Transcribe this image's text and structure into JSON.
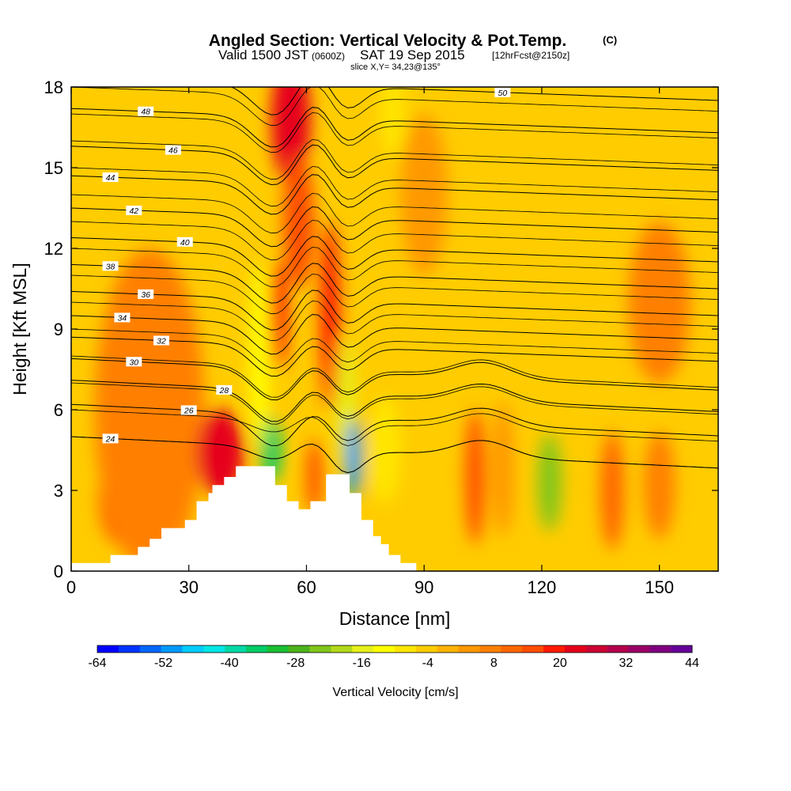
{
  "title": {
    "main": "Angled Section: Vertical Velocity & Pot.Temp.",
    "main_tag": "(C)",
    "valid_prefix": "Valid 1500 JST",
    "valid_utc": "(0600Z)",
    "valid_date": "SAT 19 Sep 2015",
    "valid_fcst": "[12hrFcst@2150z]",
    "slice": "slice X,Y= 34,23@135°"
  },
  "chart_data": {
    "type": "heatmap",
    "xlabel": "Distance [nm]",
    "ylabel": "Height [Kft MSL]",
    "xlim": [
      0,
      165
    ],
    "ylim": [
      0,
      18
    ],
    "x_ticks": [
      "0",
      "30",
      "60",
      "90",
      "120",
      "150"
    ],
    "y_ticks": [
      "0",
      "3",
      "6",
      "9",
      "12",
      "15",
      "18"
    ],
    "colorbar": {
      "label": "Vertical Velocity [cm/s]",
      "ticks": [
        "-64",
        "-52",
        "-40",
        "-28",
        "-16",
        "-4",
        "8",
        "20",
        "32",
        "44"
      ],
      "colors": [
        "#0000ff",
        "#0033ff",
        "#0066ff",
        "#0099ff",
        "#00ccff",
        "#00e6e6",
        "#00d9a6",
        "#00cc66",
        "#19bf33",
        "#4cb21a",
        "#80c61a",
        "#b3d91a",
        "#e6f01a",
        "#ffff00",
        "#ffe600",
        "#ffcc00",
        "#ffb300",
        "#ff9900",
        "#ff8000",
        "#ff6600",
        "#ff4d00",
        "#ff1a00",
        "#e6001a",
        "#cc0033",
        "#b3004d",
        "#990066",
        "#800080",
        "#660099"
      ]
    },
    "terrain": [
      [
        0,
        0.3
      ],
      [
        10,
        0.3
      ],
      [
        10,
        0.6
      ],
      [
        17,
        0.6
      ],
      [
        17,
        0.9
      ],
      [
        20,
        0.9
      ],
      [
        20,
        1.2
      ],
      [
        23,
        1.2
      ],
      [
        23,
        1.6
      ],
      [
        29,
        1.6
      ],
      [
        29,
        1.9
      ],
      [
        32,
        1.9
      ],
      [
        32,
        2.6
      ],
      [
        35,
        2.6
      ],
      [
        35,
        2.9
      ],
      [
        36,
        2.9
      ],
      [
        36,
        3.2
      ],
      [
        39,
        3.2
      ],
      [
        39,
        3.5
      ],
      [
        42,
        3.5
      ],
      [
        42,
        3.9
      ],
      [
        52,
        3.9
      ],
      [
        52,
        3.2
      ],
      [
        55,
        3.2
      ],
      [
        55,
        2.6
      ],
      [
        58,
        2.6
      ],
      [
        58,
        2.3
      ],
      [
        61,
        2.3
      ],
      [
        61,
        2.6
      ],
      [
        65,
        2.6
      ],
      [
        65,
        3.6
      ],
      [
        71,
        3.6
      ],
      [
        71,
        2.9
      ],
      [
        74,
        2.9
      ],
      [
        74,
        1.9
      ],
      [
        77,
        1.9
      ],
      [
        77,
        1.3
      ],
      [
        79,
        1.3
      ],
      [
        79,
        1.0
      ],
      [
        81,
        1.0
      ],
      [
        81,
        0.6
      ],
      [
        84,
        0.6
      ],
      [
        84,
        0.3
      ],
      [
        88,
        0.3
      ],
      [
        88,
        0.0
      ]
    ],
    "velocity_blobs": [
      {
        "x": 12,
        "y": 2.6,
        "v": 10,
        "rx": 5,
        "ry": 1.6
      },
      {
        "x": 20,
        "y": 6.0,
        "v": 8,
        "rx": 14,
        "ry": 6
      },
      {
        "x": 38,
        "y": 4.4,
        "v": 22,
        "rx": 6,
        "ry": 1.6
      },
      {
        "x": 56,
        "y": 16.8,
        "v": 22,
        "rx": 5,
        "ry": 2.4
      },
      {
        "x": 58,
        "y": 13.0,
        "v": 14,
        "rx": 4,
        "ry": 2.5
      },
      {
        "x": 53,
        "y": 9.5,
        "v": 18,
        "rx": 2.2,
        "ry": 2.0
      },
      {
        "x": 48,
        "y": 8.0,
        "v": -12,
        "rx": 2.5,
        "ry": 3.5
      },
      {
        "x": 51,
        "y": 4.5,
        "v": -34,
        "rx": 2.5,
        "ry": 1.2
      },
      {
        "x": 66,
        "y": 9.5,
        "v": 18,
        "rx": 2.5,
        "ry": 3.5
      },
      {
        "x": 62,
        "y": 3.5,
        "v": 14,
        "rx": 2,
        "ry": 1.4
      },
      {
        "x": 70,
        "y": 6.2,
        "v": -14,
        "rx": 2.5,
        "ry": 2.5
      },
      {
        "x": 72,
        "y": 4.2,
        "v": -52,
        "rx": 2,
        "ry": 1.5
      },
      {
        "x": 80,
        "y": 4.5,
        "v": -10,
        "rx": 4,
        "ry": 2
      },
      {
        "x": 82,
        "y": 17.0,
        "v": -10,
        "rx": 3,
        "ry": 1.6
      },
      {
        "x": 90,
        "y": 14.0,
        "v": 2,
        "rx": 6,
        "ry": 3
      },
      {
        "x": 103,
        "y": 3.5,
        "v": 16,
        "rx": 2.5,
        "ry": 2.5
      },
      {
        "x": 110,
        "y": 3.8,
        "v": 4,
        "rx": 3,
        "ry": 2.5
      },
      {
        "x": 122,
        "y": 3.3,
        "v": -24,
        "rx": 3,
        "ry": 1.8
      },
      {
        "x": 138,
        "y": 3.0,
        "v": 12,
        "rx": 3,
        "ry": 2.2
      },
      {
        "x": 150,
        "y": 3.2,
        "v": 6,
        "rx": 4,
        "ry": 2
      },
      {
        "x": 150,
        "y": 10.0,
        "v": 8,
        "rx": 8,
        "ry": 3
      }
    ],
    "theta_contours": [
      {
        "theta": 24,
        "base": 5.0,
        "label": "24",
        "lx": 10
      },
      {
        "theta": 26,
        "base": 6.2,
        "label": "26",
        "lx": 30
      },
      {
        "theta": 28,
        "base": 7.1,
        "label": "28",
        "lx": 39
      },
      {
        "theta": 30,
        "base": 7.9,
        "label": "30",
        "lx": 16
      },
      {
        "theta": 32,
        "base": 8.7,
        "label": "32",
        "lx": 23
      },
      {
        "theta": 34,
        "base": 9.5,
        "label": "34",
        "lx": 13
      },
      {
        "theta": 36,
        "base": 10.4,
        "label": "36",
        "lx": 19
      },
      {
        "theta": 38,
        "base": 11.4,
        "label": "38",
        "lx": 10
      },
      {
        "theta": 40,
        "base": 12.4,
        "label": "40",
        "lx": 29
      },
      {
        "theta": 42,
        "base": 13.5,
        "label": "42",
        "lx": 16
      },
      {
        "theta": 44,
        "base": 14.7,
        "label": "44",
        "lx": 10
      },
      {
        "theta": 46,
        "base": 15.8,
        "label": "46",
        "lx": 26
      },
      {
        "theta": 48,
        "base": 17.2,
        "label": "48",
        "lx": 19
      },
      {
        "theta": 50,
        "base": 18.4,
        "label": "50",
        "lx": 110
      }
    ]
  }
}
